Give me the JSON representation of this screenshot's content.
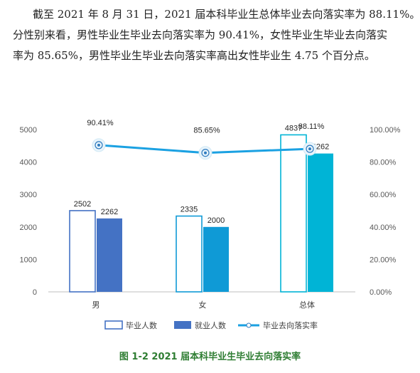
{
  "paragraph": {
    "line1": "截至 2021 年 8 月 31 日，2021 届本科毕业生总体毕业去向落实率为 88.11%。",
    "line2": "分性别来看，男性毕业生毕业去向落实率为 90.41%，女性毕业生毕业去向落实",
    "line3": "率为 85.65%，男性毕业生毕业去向落实率高出女性毕业生 4.75 个百分点。"
  },
  "caption": "图 1-2 2021 届本科毕业生毕业去向落实率",
  "colors": {
    "graduates_outline": "#4472c4",
    "employed_fill": [
      "#4472c4",
      "#0f9ad6",
      "#00b4d6"
    ],
    "rate_line": "#1ba1e2",
    "caption": "#2e7d32"
  },
  "chart_data": {
    "type": "bar",
    "categories": [
      "男",
      "女",
      "总体"
    ],
    "series": [
      {
        "name": "毕业人数",
        "kind": "bar-outline",
        "values": [
          2502,
          2335,
          4837
        ],
        "labels": [
          "2502",
          "2335",
          "4837"
        ]
      },
      {
        "name": "就业人数",
        "kind": "bar",
        "values": [
          2262,
          2000,
          4262
        ],
        "labels": [
          "2262",
          "2000",
          "4262"
        ]
      },
      {
        "name": "毕业去向落实率",
        "kind": "line",
        "axis": "right",
        "values": [
          90.41,
          85.65,
          88.11
        ],
        "labels": [
          "90.41%",
          "85.65%",
          "88.11%"
        ]
      }
    ],
    "left_axis": {
      "ylim": [
        0,
        5000
      ],
      "ticks": [
        "0",
        "1000",
        "2000",
        "3000",
        "4000",
        "5000"
      ]
    },
    "right_axis": {
      "ylim": [
        0,
        100
      ],
      "ticks": [
        "0.00%",
        "20.00%",
        "40.00%",
        "60.00%",
        "80.00%",
        "100.00%"
      ]
    },
    "legend": [
      "毕业人数",
      "就业人数",
      "毕业去向落实率"
    ],
    "legend_position": "bottom"
  }
}
